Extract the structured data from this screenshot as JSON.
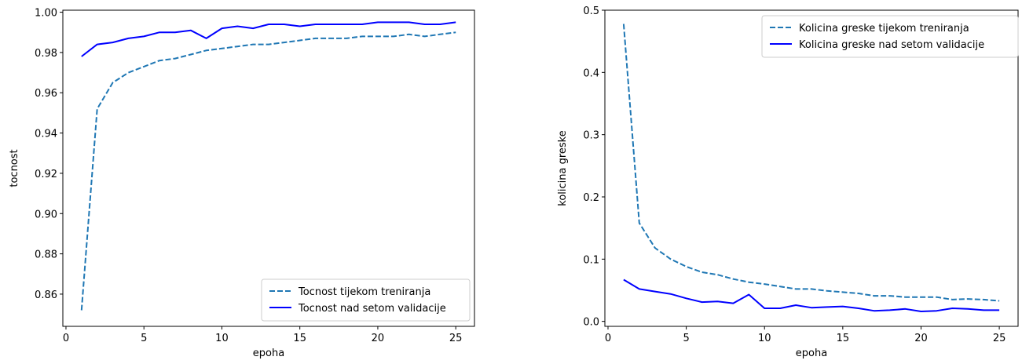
{
  "chart_data": [
    {
      "type": "line",
      "xlabel": "epoha",
      "ylabel": "tocnost",
      "xlim": [
        -0.2,
        26.2
      ],
      "ylim": [
        0.844,
        1.001
      ],
      "xticks": [
        0,
        5,
        10,
        15,
        20,
        25
      ],
      "yticks": [
        0.86,
        0.88,
        0.9,
        0.92,
        0.94,
        0.96,
        0.98,
        1.0
      ],
      "ytick_labels": [
        "0.86",
        "0.88",
        "0.90",
        "0.92",
        "0.94",
        "0.96",
        "0.98",
        "1.00"
      ],
      "legend_position": "lower-right",
      "x": [
        1,
        2,
        3,
        4,
        5,
        6,
        7,
        8,
        9,
        10,
        11,
        12,
        13,
        14,
        15,
        16,
        17,
        18,
        19,
        20,
        21,
        22,
        23,
        24,
        25
      ],
      "series": [
        {
          "name": "Tocnost tijekom treniranja",
          "style": "dashed",
          "color": "#1f77b4",
          "values": [
            0.852,
            0.952,
            0.965,
            0.97,
            0.973,
            0.976,
            0.977,
            0.979,
            0.981,
            0.982,
            0.983,
            0.984,
            0.984,
            0.985,
            0.986,
            0.987,
            0.987,
            0.987,
            0.988,
            0.988,
            0.988,
            0.989,
            0.988,
            0.989,
            0.99
          ]
        },
        {
          "name": "Tocnost nad setom validacije",
          "style": "solid",
          "color": "#0000ff",
          "values": [
            0.978,
            0.984,
            0.985,
            0.987,
            0.988,
            0.99,
            0.99,
            0.991,
            0.987,
            0.992,
            0.993,
            0.992,
            0.994,
            0.994,
            0.993,
            0.994,
            0.994,
            0.994,
            0.994,
            0.995,
            0.995,
            0.995,
            0.994,
            0.994,
            0.995
          ]
        }
      ]
    },
    {
      "type": "line",
      "xlabel": "epoha",
      "ylabel": "kolicina greske",
      "xlim": [
        -0.2,
        26.2
      ],
      "ylim": [
        -0.008,
        0.5
      ],
      "xticks": [
        0,
        5,
        10,
        15,
        20,
        25
      ],
      "yticks": [
        0.0,
        0.1,
        0.2,
        0.3,
        0.4,
        0.5
      ],
      "ytick_labels": [
        "0.0",
        "0.1",
        "0.2",
        "0.3",
        "0.4",
        "0.5"
      ],
      "legend_position": "upper-right",
      "x": [
        1,
        2,
        3,
        4,
        5,
        6,
        7,
        8,
        9,
        10,
        11,
        12,
        13,
        14,
        15,
        16,
        17,
        18,
        19,
        20,
        21,
        22,
        23,
        24,
        25
      ],
      "series": [
        {
          "name": "Kolicina greske tijekom treniranja",
          "style": "dashed",
          "color": "#1f77b4",
          "values": [
            0.478,
            0.158,
            0.118,
            0.1,
            0.088,
            0.079,
            0.075,
            0.068,
            0.063,
            0.06,
            0.056,
            0.052,
            0.052,
            0.049,
            0.047,
            0.045,
            0.041,
            0.041,
            0.039,
            0.039,
            0.039,
            0.035,
            0.036,
            0.035,
            0.033
          ]
        },
        {
          "name": "Kolicina greske nad setom validacije",
          "style": "solid",
          "color": "#0000ff",
          "values": [
            0.067,
            0.052,
            0.048,
            0.044,
            0.037,
            0.031,
            0.032,
            0.029,
            0.043,
            0.021,
            0.021,
            0.026,
            0.022,
            0.023,
            0.024,
            0.021,
            0.017,
            0.018,
            0.02,
            0.016,
            0.017,
            0.021,
            0.02,
            0.018,
            0.018
          ]
        }
      ]
    }
  ]
}
